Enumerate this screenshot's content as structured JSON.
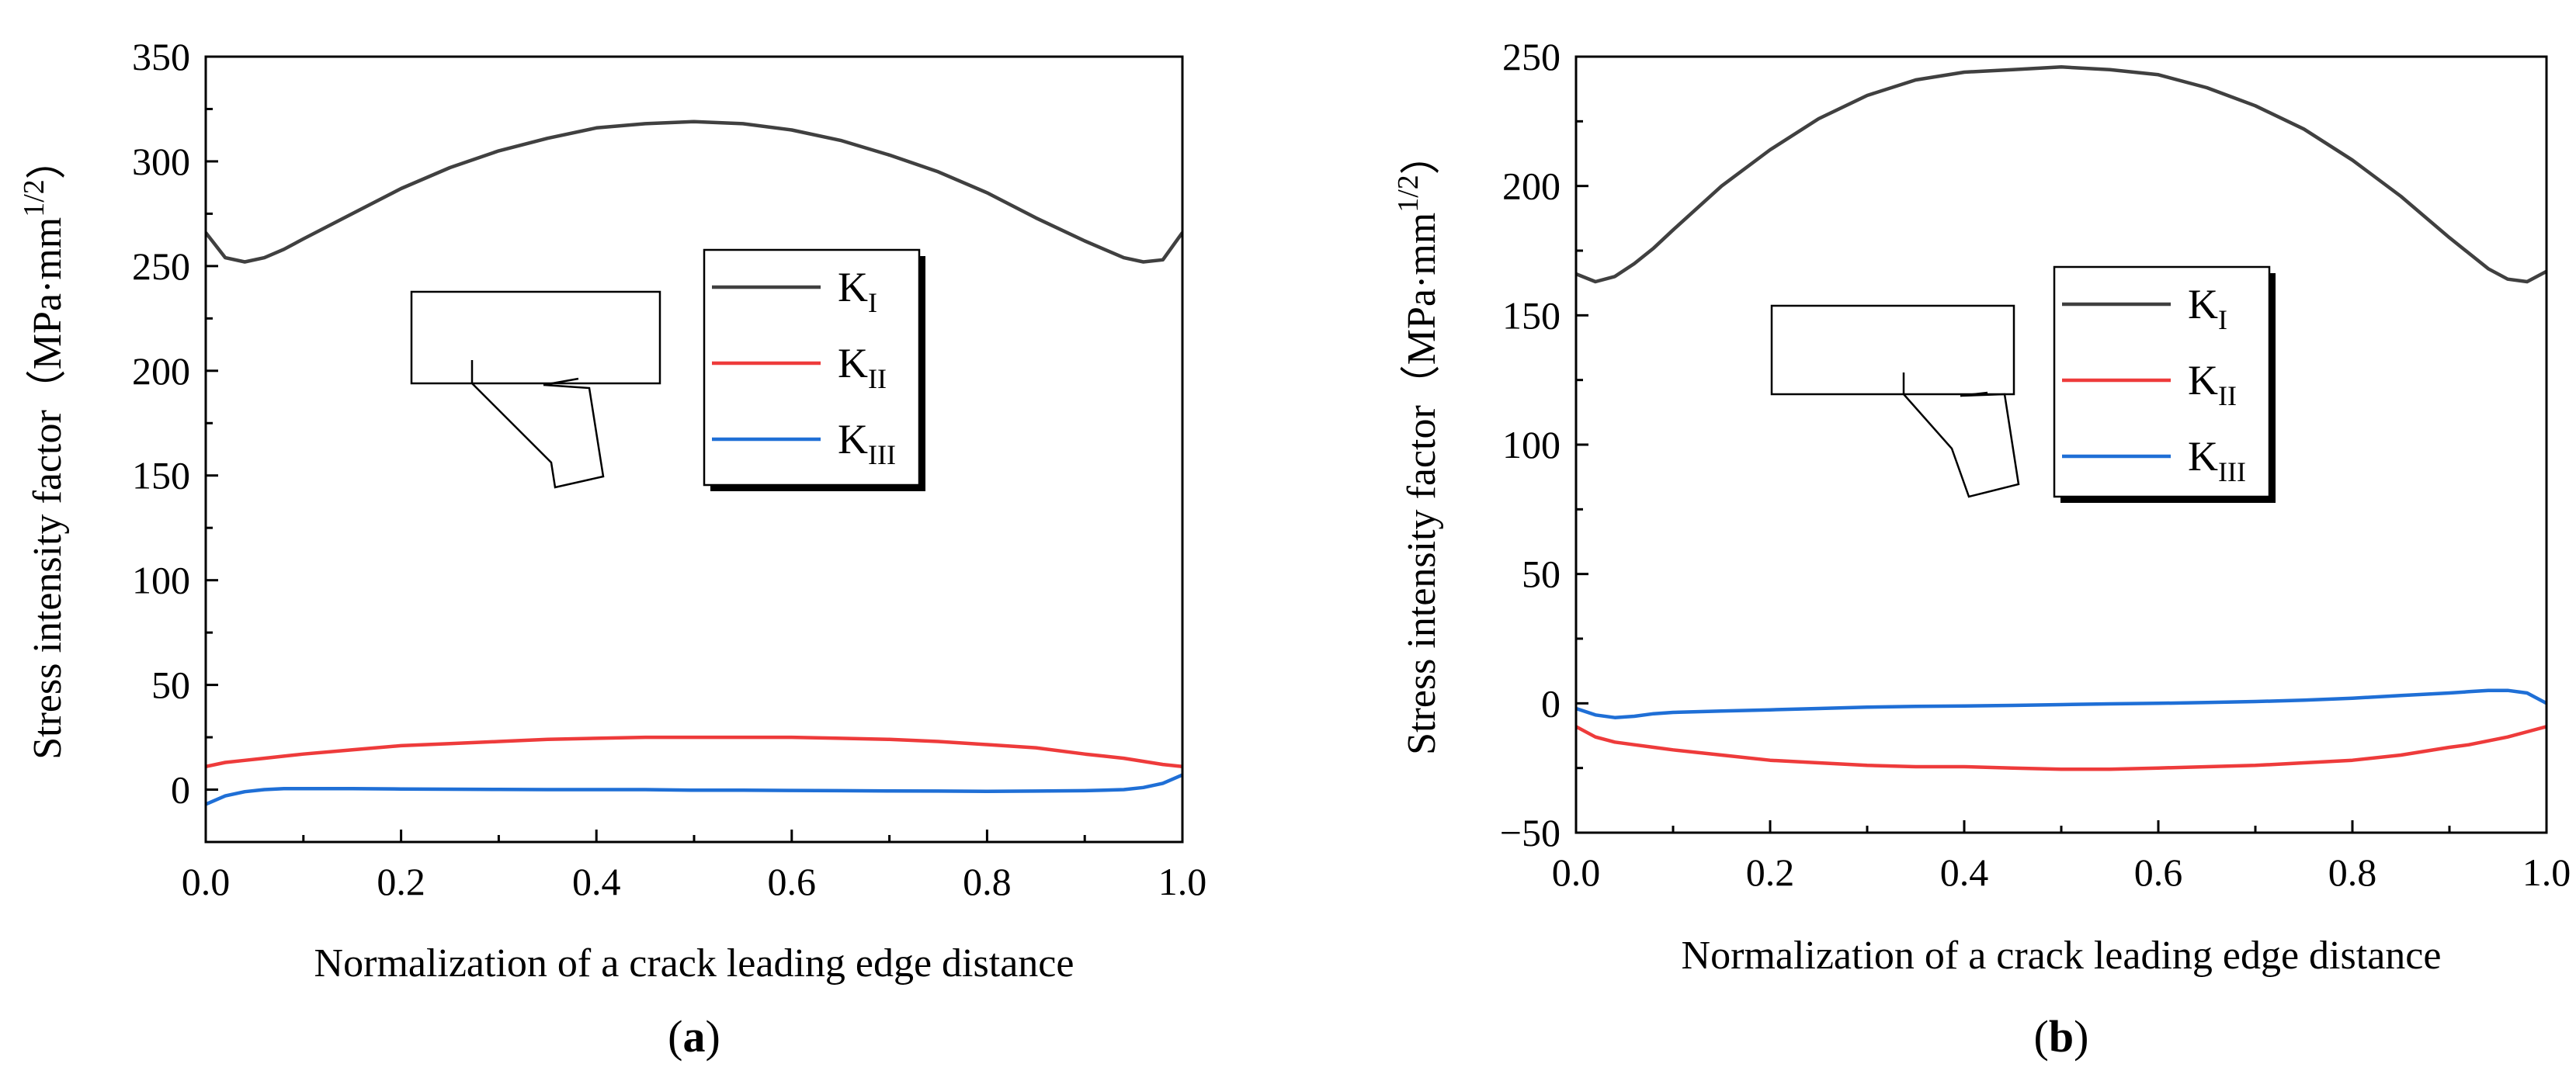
{
  "figure": {
    "panels": [
      "a",
      "b"
    ]
  },
  "chart_data": [
    {
      "type": "line",
      "panel_label": "(a)",
      "panel_letter": "a",
      "xlabel": "Normalization of a crack leading edge distance",
      "ylabel_main": "Stress intensity factor（MPa·mm",
      "ylabel_exp": "1/2",
      "ylabel_close": "）",
      "xlim": [
        0.0,
        1.0
      ],
      "ylim": [
        -25,
        350
      ],
      "xticks": [
        0.0,
        0.2,
        0.4,
        0.6,
        0.8,
        1.0
      ],
      "xtick_labels": [
        "0.0",
        "0.2",
        "0.4",
        "0.6",
        "0.8",
        "1.0"
      ],
      "yticks": [
        0,
        50,
        100,
        150,
        200,
        250,
        300,
        350
      ],
      "ytick_labels": [
        "0",
        "50",
        "100",
        "150",
        "200",
        "250",
        "300",
        "350"
      ],
      "legend_position": "top-right",
      "x": [
        0.0,
        0.02,
        0.04,
        0.06,
        0.08,
        0.1,
        0.15,
        0.2,
        0.25,
        0.3,
        0.35,
        0.4,
        0.45,
        0.5,
        0.55,
        0.6,
        0.65,
        0.7,
        0.75,
        0.8,
        0.85,
        0.9,
        0.92,
        0.94,
        0.96,
        0.98,
        1.0
      ],
      "series": [
        {
          "name": "K",
          "sub": "I",
          "color": "#404040",
          "values": [
            266,
            254,
            252,
            254,
            258,
            263,
            275,
            287,
            297,
            305,
            311,
            316,
            318,
            319,
            318,
            315,
            310,
            303,
            295,
            285,
            273,
            262,
            258,
            254,
            252,
            253,
            266
          ]
        },
        {
          "name": "K",
          "sub": "II",
          "color": "#ee3b3b",
          "values": [
            11,
            13,
            14,
            15,
            16,
            17,
            19,
            21,
            22,
            23,
            24,
            24.5,
            25,
            25,
            25,
            25,
            24.5,
            24,
            23,
            21.5,
            20,
            17,
            16,
            15,
            13.5,
            12,
            11
          ]
        },
        {
          "name": "K",
          "sub": "III",
          "color": "#1f6fd6",
          "values": [
            -7,
            -3,
            -1,
            0,
            0.5,
            0.5,
            0.5,
            0.3,
            0.2,
            0.1,
            0,
            0,
            0,
            -0.3,
            -0.3,
            -0.4,
            -0.5,
            -0.6,
            -0.7,
            -0.8,
            -0.7,
            -0.5,
            -0.3,
            0,
            1,
            3,
            7
          ]
        }
      ]
    },
    {
      "type": "line",
      "panel_label": "(b)",
      "panel_letter": "b",
      "xlabel": "Normalization of a crack leading edge distance",
      "ylabel_main": "Stress intensity factor（MPa·mm",
      "ylabel_exp": "1/2",
      "ylabel_close": "）",
      "xlim": [
        0.0,
        1.0
      ],
      "ylim": [
        -50,
        250
      ],
      "xticks": [
        0.0,
        0.2,
        0.4,
        0.6,
        0.8,
        1.0
      ],
      "xtick_labels": [
        "0.0",
        "0.2",
        "0.4",
        "0.6",
        "0.8",
        "1.0"
      ],
      "yticks": [
        -50,
        0,
        50,
        100,
        150,
        200,
        250
      ],
      "ytick_labels": [
        "−50",
        "0",
        "50",
        "100",
        "150",
        "200",
        "250"
      ],
      "legend_position": "top-right",
      "x": [
        0.0,
        0.02,
        0.04,
        0.06,
        0.08,
        0.1,
        0.15,
        0.2,
        0.25,
        0.3,
        0.35,
        0.4,
        0.45,
        0.5,
        0.55,
        0.6,
        0.65,
        0.7,
        0.75,
        0.8,
        0.85,
        0.9,
        0.92,
        0.94,
        0.96,
        0.98,
        1.0
      ],
      "series": [
        {
          "name": "K",
          "sub": "I",
          "color": "#404040",
          "values": [
            166,
            163,
            165,
            170,
            176,
            183,
            200,
            214,
            226,
            235,
            241,
            244,
            245,
            246,
            245,
            243,
            238,
            231,
            222,
            210,
            196,
            180,
            174,
            168,
            164,
            163,
            167
          ]
        },
        {
          "name": "K",
          "sub": "II",
          "color": "#ee3b3b",
          "values": [
            -9,
            -13,
            -15,
            -16,
            -17,
            -18,
            -20,
            -22,
            -23,
            -24,
            -24.5,
            -24.5,
            -25,
            -25.5,
            -25.5,
            -25,
            -24.5,
            -24,
            -23,
            -22,
            -20,
            -17,
            -16,
            -14.5,
            -13,
            -11,
            -9
          ]
        },
        {
          "name": "K",
          "sub": "III",
          "color": "#1f6fd6",
          "values": [
            -2,
            -4.5,
            -5.5,
            -5,
            -4,
            -3.5,
            -3,
            -2.5,
            -2,
            -1.5,
            -1.2,
            -1,
            -0.8,
            -0.5,
            -0.2,
            0,
            0.3,
            0.7,
            1.2,
            2,
            3,
            4,
            4.5,
            5,
            5,
            4,
            0
          ]
        }
      ]
    }
  ]
}
